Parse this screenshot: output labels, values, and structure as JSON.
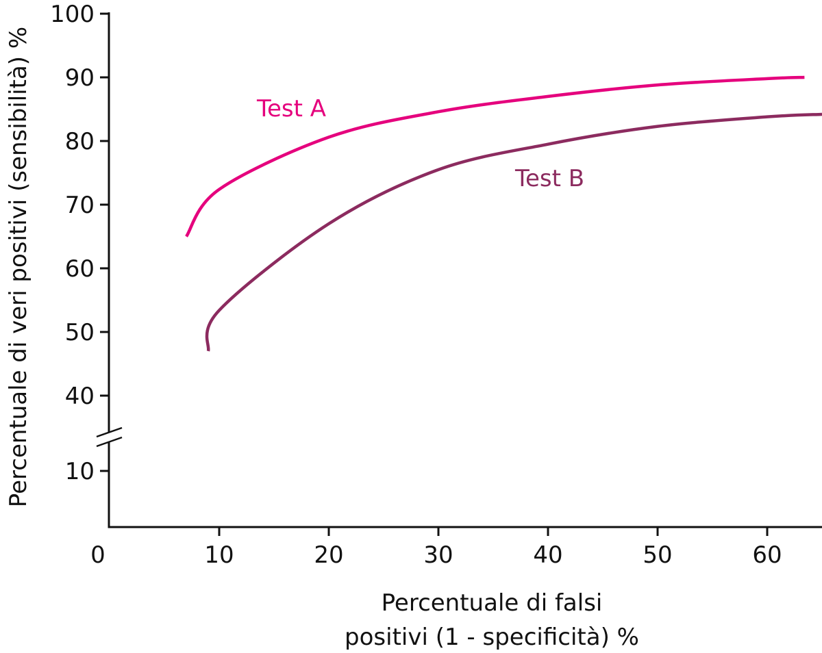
{
  "chart_data": {
    "type": "line",
    "xlabel_lines": [
      "Percentuale di falsi",
      "positivi (1 - specificità) %"
    ],
    "ylabel": "Percentuale di veri positivi (sensibilità) %",
    "xlim": [
      0,
      65
    ],
    "ylim": [
      0,
      100
    ],
    "y_axis_break": [
      10,
      40
    ],
    "grid": false,
    "x_ticks": [
      0,
      10,
      20,
      30,
      40,
      50,
      60
    ],
    "y_ticks": [
      10,
      40,
      50,
      60,
      70,
      80,
      90,
      100
    ],
    "series": [
      {
        "name": "Test A",
        "color": "#e5007d",
        "x": [
          7,
          10,
          20,
          30,
          40,
          50,
          60,
          63.4
        ],
        "y": [
          65,
          72.4,
          80.6,
          84.6,
          87.0,
          88.8,
          89.8,
          90
        ]
      },
      {
        "name": "Test B",
        "color": "#8c2b5f",
        "x": [
          9,
          10,
          20,
          30,
          40,
          50,
          60,
          65
        ],
        "y": [
          47,
          53.4,
          67,
          75.5,
          79.5,
          82.3,
          83.8,
          84.2
        ]
      }
    ]
  }
}
